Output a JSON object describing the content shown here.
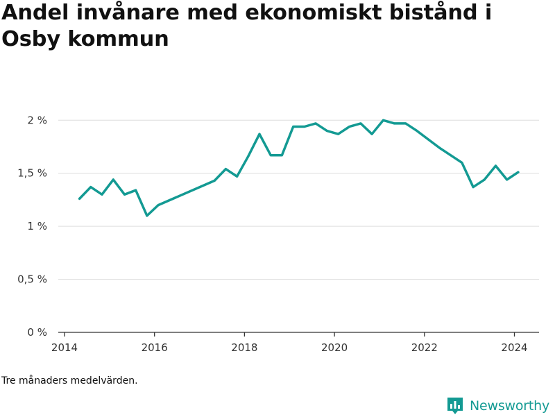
{
  "title": "Andel invånare med ekonomiskt bistånd i Osby kommun",
  "footnote": "Tre månaders medelvärden.",
  "brand": {
    "name": "Newsworthy",
    "color": "#139a93",
    "icon": "newsworthy-logo-icon"
  },
  "chart_data": {
    "type": "line",
    "title": "Andel invånare med ekonomiskt bistånd i Osby kommun",
    "xlabel": "",
    "ylabel": "",
    "x_ticks": [
      "2014",
      "2016",
      "2018",
      "2020",
      "2022",
      "2024"
    ],
    "y_ticks": [
      "0 %",
      "0,5 %",
      "1 %",
      "1,5 %",
      "2 %"
    ],
    "ylim": [
      0,
      2.1
    ],
    "grid": "horizontal",
    "line_color": "#139a93",
    "series": [
      {
        "x": [
          "2014-05",
          "2014-08",
          "2014-11",
          "2015-02",
          "2015-05",
          "2015-08",
          "2015-11",
          "2016-02",
          "2017-05",
          "2017-08",
          "2017-11",
          "2018-02",
          "2018-05",
          "2018-08",
          "2018-11",
          "2019-02",
          "2019-05",
          "2019-08",
          "2019-11",
          "2020-02",
          "2020-05",
          "2020-08",
          "2020-11",
          "2021-02",
          "2021-05",
          "2021-08",
          "2021-11",
          "2022-05",
          "2022-11",
          "2023-02",
          "2023-05",
          "2023-08",
          "2023-11",
          "2024-02"
        ],
        "values": [
          1.26,
          1.37,
          1.3,
          1.44,
          1.3,
          1.34,
          1.1,
          1.2,
          1.43,
          1.54,
          1.47,
          1.66,
          1.87,
          1.67,
          1.67,
          1.94,
          1.94,
          1.97,
          1.9,
          1.87,
          1.94,
          1.97,
          1.87,
          2.0,
          1.97,
          1.97,
          1.9,
          1.74,
          1.6,
          1.37,
          1.44,
          1.57,
          1.44,
          1.51
        ]
      }
    ]
  }
}
